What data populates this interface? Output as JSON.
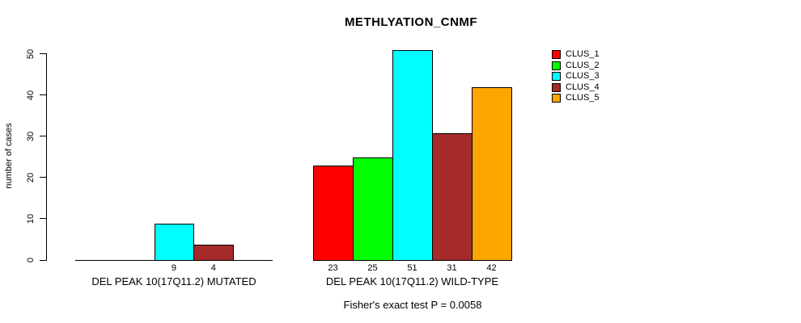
{
  "chart_data": {
    "type": "bar",
    "title": "METHLYATION_CNMF",
    "xlabel": "",
    "ylabel": "number of cases",
    "ylim": [
      0,
      50
    ],
    "yticks": [
      0,
      10,
      20,
      30,
      40,
      50
    ],
    "grid": false,
    "legend_position": "top-right",
    "legend": [
      {
        "label": "CLUS_1",
        "color": "#FF0000"
      },
      {
        "label": "CLUS_2",
        "color": "#00FF00"
      },
      {
        "label": "CLUS_3",
        "color": "#00FFFF"
      },
      {
        "label": "CLUS_4",
        "color": "#A52A2A"
      },
      {
        "label": "CLUS_5",
        "color": "#FFA500"
      }
    ],
    "groups": [
      {
        "label": "DEL PEAK 10(17Q11.2) MUTATED",
        "values": [
          0,
          0,
          9,
          4,
          0
        ],
        "value_labels": [
          "",
          "",
          "9",
          "4",
          ""
        ]
      },
      {
        "label": "DEL PEAK 10(17Q11.2) WILD-TYPE",
        "values": [
          23,
          25,
          51,
          31,
          42
        ],
        "value_labels": [
          "23",
          "25",
          "51",
          "31",
          "42"
        ]
      }
    ],
    "annotation": "Fisher's exact test P = 0.0058"
  }
}
